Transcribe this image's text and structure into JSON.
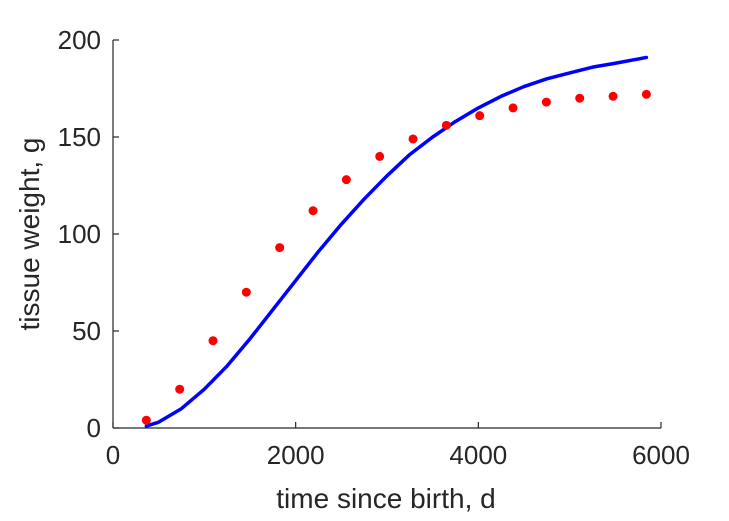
{
  "chart_data": {
    "type": "scatter",
    "xlabel": "time since birth, d",
    "ylabel": "tissue weight, g",
    "xlim": [
      0,
      6000
    ],
    "ylim": [
      0,
      200
    ],
    "x_ticks": [
      "0",
      "2000",
      "4000",
      "6000"
    ],
    "y_ticks": [
      "0",
      "50",
      "100",
      "150",
      "200"
    ],
    "grid": false,
    "series": [
      {
        "kind": "points",
        "color": "#ff0000",
        "x": [
          365,
          730,
          1095,
          1460,
          1825,
          2190,
          2555,
          2920,
          3285,
          3650,
          4015,
          4380,
          4745,
          5110,
          5475,
          5840
        ],
        "y": [
          4,
          20,
          45,
          70,
          93,
          112,
          128,
          140,
          149,
          156,
          161,
          165,
          168,
          170,
          171,
          172
        ]
      },
      {
        "kind": "line",
        "color": "#0000ff",
        "x": [
          365,
          500,
          750,
          1000,
          1250,
          1500,
          1750,
          2000,
          2250,
          2500,
          2750,
          3000,
          3250,
          3500,
          3750,
          4000,
          4250,
          4500,
          4750,
          5000,
          5250,
          5500,
          5840
        ],
        "y": [
          1,
          3,
          10,
          20,
          32,
          46,
          61,
          76,
          91,
          105,
          118,
          130,
          141,
          150,
          158,
          165,
          171,
          176,
          180,
          183,
          186,
          188,
          191
        ]
      }
    ]
  }
}
